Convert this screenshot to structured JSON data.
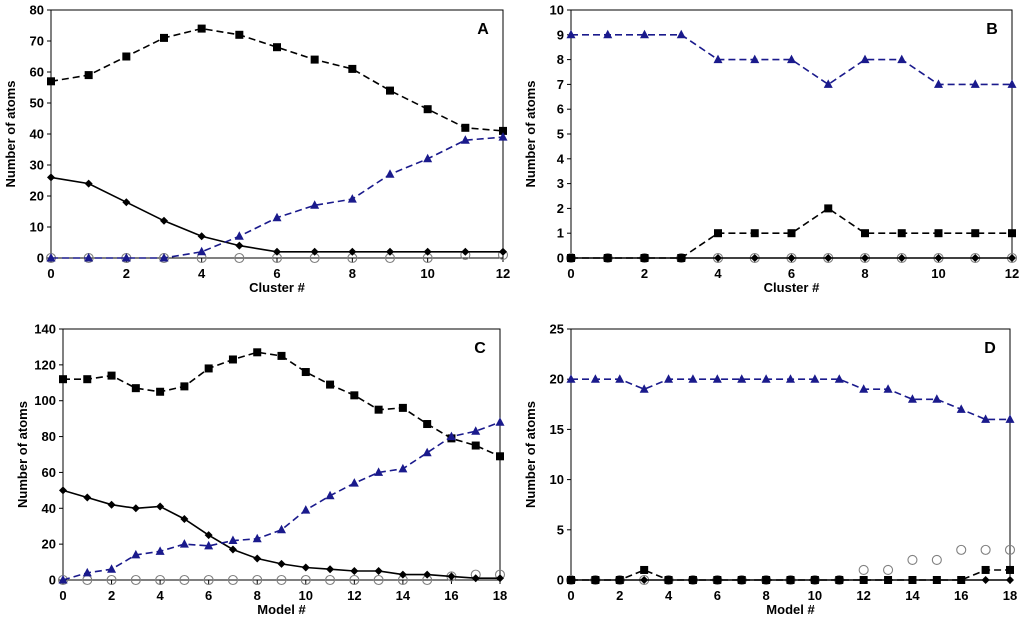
{
  "chart_data": [
    {
      "type": "line",
      "panel_label": "A",
      "xlabel": "Cluster #",
      "ylabel": "Number of atoms",
      "xlim": [
        0,
        12
      ],
      "ylim": [
        0,
        80
      ],
      "xticks": [
        0,
        2,
        4,
        6,
        8,
        10,
        12
      ],
      "yticks": [
        0,
        10,
        20,
        30,
        40,
        50,
        60,
        70,
        80
      ],
      "x": [
        0,
        1,
        2,
        3,
        4,
        5,
        6,
        7,
        8,
        9,
        10,
        11,
        12
      ],
      "series": [
        {
          "style": "black-dashed-square",
          "color": "#000000",
          "marker": "square",
          "line": "dashed",
          "values": [
            57,
            59,
            65,
            71,
            74,
            72,
            68,
            64,
            61,
            54,
            48,
            42,
            41
          ]
        },
        {
          "style": "black-solid-diamond",
          "color": "#000000",
          "marker": "diamond",
          "line": "solid",
          "values": [
            26,
            24,
            18,
            12,
            7,
            4,
            2,
            2,
            2,
            2,
            2,
            2,
            2
          ]
        },
        {
          "style": "blue-dashed-triangle",
          "color": "#1a1a8c",
          "marker": "triangle",
          "line": "dashed",
          "values": [
            0,
            0,
            0,
            0,
            2,
            7,
            13,
            17,
            19,
            27,
            32,
            38,
            39
          ]
        },
        {
          "style": "gray-open-circle",
          "color": "#808080",
          "marker": "circle",
          "line": "none",
          "values": [
            0,
            0,
            0,
            0,
            0,
            0,
            0,
            0,
            0,
            0,
            0,
            1,
            1
          ]
        }
      ]
    },
    {
      "type": "line",
      "panel_label": "B",
      "xlabel": "Cluster #",
      "ylabel": "Number of atoms",
      "xlim": [
        0,
        12
      ],
      "ylim": [
        0,
        10
      ],
      "xticks": [
        0,
        2,
        4,
        6,
        8,
        10,
        12
      ],
      "yticks": [
        0,
        1,
        2,
        3,
        4,
        5,
        6,
        7,
        8,
        9,
        10
      ],
      "x": [
        0,
        1,
        2,
        3,
        4,
        5,
        6,
        7,
        8,
        9,
        10,
        11,
        12
      ],
      "series": [
        {
          "style": "blue-dashed-triangle",
          "color": "#1a1a8c",
          "marker": "triangle",
          "line": "dashed",
          "values": [
            9,
            9,
            9,
            9,
            8,
            8,
            8,
            7,
            8,
            8,
            7,
            7,
            7
          ]
        },
        {
          "style": "black-dashed-square",
          "color": "#000000",
          "marker": "square",
          "line": "dashed",
          "values": [
            0,
            0,
            0,
            0,
            1,
            1,
            1,
            2,
            1,
            1,
            1,
            1,
            1
          ]
        },
        {
          "style": "black-solid-diamond",
          "color": "#000000",
          "marker": "diamond",
          "line": "solid",
          "values": [
            0,
            0,
            0,
            0,
            0,
            0,
            0,
            0,
            0,
            0,
            0,
            0,
            0
          ]
        },
        {
          "style": "gray-open-circle",
          "color": "#808080",
          "marker": "circle",
          "line": "none",
          "values": [
            0,
            0,
            0,
            0,
            0,
            0,
            0,
            0,
            0,
            0,
            0,
            0,
            0
          ]
        }
      ]
    },
    {
      "type": "line",
      "panel_label": "C",
      "xlabel": "Model #",
      "ylabel": "Number of atoms",
      "xlim": [
        0,
        18
      ],
      "ylim": [
        0,
        140
      ],
      "xticks": [
        0,
        2,
        4,
        6,
        8,
        10,
        12,
        14,
        16,
        18
      ],
      "yticks": [
        0,
        20,
        40,
        60,
        80,
        100,
        120,
        140
      ],
      "x": [
        0,
        1,
        2,
        3,
        4,
        5,
        6,
        7,
        8,
        9,
        10,
        11,
        12,
        13,
        14,
        15,
        16,
        17,
        18
      ],
      "series": [
        {
          "style": "black-dashed-square",
          "color": "#000000",
          "marker": "square",
          "line": "dashed",
          "values": [
            112,
            112,
            114,
            107,
            105,
            108,
            118,
            123,
            127,
            125,
            116,
            109,
            103,
            95,
            96,
            87,
            79,
            75,
            69
          ]
        },
        {
          "style": "black-solid-diamond",
          "color": "#000000",
          "marker": "diamond",
          "line": "solid",
          "values": [
            50,
            46,
            42,
            40,
            41,
            34,
            25,
            17,
            12,
            9,
            7,
            6,
            5,
            5,
            3,
            3,
            2,
            1,
            1
          ]
        },
        {
          "style": "blue-dashed-triangle",
          "color": "#1a1a8c",
          "marker": "triangle",
          "line": "dashed",
          "values": [
            0,
            4,
            6,
            14,
            16,
            20,
            19,
            22,
            23,
            28,
            39,
            47,
            54,
            60,
            62,
            71,
            80,
            83,
            88
          ]
        },
        {
          "style": "gray-open-circle",
          "color": "#808080",
          "marker": "circle",
          "line": "none",
          "values": [
            0,
            0,
            0,
            0,
            0,
            0,
            0,
            0,
            0,
            0,
            0,
            0,
            0,
            0,
            0,
            0,
            2,
            3,
            3
          ]
        }
      ]
    },
    {
      "type": "line",
      "panel_label": "D",
      "xlabel": "Model #",
      "ylabel": "Number of atoms",
      "xlim": [
        0,
        18
      ],
      "ylim": [
        0,
        25
      ],
      "xticks": [
        0,
        2,
        4,
        6,
        8,
        10,
        12,
        14,
        16,
        18
      ],
      "yticks": [
        0,
        5,
        10,
        15,
        20,
        25
      ],
      "x": [
        0,
        1,
        2,
        3,
        4,
        5,
        6,
        7,
        8,
        9,
        10,
        11,
        12,
        13,
        14,
        15,
        16,
        17,
        18
      ],
      "series": [
        {
          "style": "blue-dashed-triangle",
          "color": "#1a1a8c",
          "marker": "triangle",
          "line": "dashed",
          "values": [
            20,
            20,
            20,
            19,
            20,
            20,
            20,
            20,
            20,
            20,
            20,
            20,
            19,
            19,
            18,
            18,
            17,
            16,
            16
          ]
        },
        {
          "style": "black-dashed-square",
          "color": "#000000",
          "marker": "square",
          "line": "dashed",
          "values": [
            0,
            0,
            0,
            1,
            0,
            0,
            0,
            0,
            0,
            0,
            0,
            0,
            0,
            0,
            0,
            0,
            0,
            1,
            1
          ]
        },
        {
          "style": "black-solid-diamond",
          "color": "#000000",
          "marker": "diamond",
          "line": "solid",
          "values": [
            0,
            0,
            0,
            0,
            0,
            0,
            0,
            0,
            0,
            0,
            0,
            0,
            0,
            0,
            0,
            0,
            0,
            0,
            0
          ]
        },
        {
          "style": "gray-open-circle",
          "color": "#808080",
          "marker": "circle",
          "line": "none",
          "values": [
            0,
            0,
            0,
            0,
            0,
            0,
            0,
            0,
            0,
            0,
            0,
            0,
            1,
            1,
            2,
            2,
            3,
            3,
            3
          ]
        }
      ]
    }
  ]
}
